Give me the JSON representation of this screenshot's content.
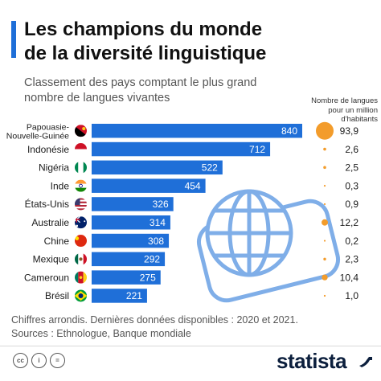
{
  "title_line1": "Les champions du monde",
  "title_line2": "de la diversité linguistique",
  "subtitle_line1": "Classement des pays comptant le plus grand",
  "subtitle_line2": "nombre de langues vivantes",
  "rate_header": [
    "Nombre de langues",
    "pour un million",
    "d'habitants"
  ],
  "footnote_line1": "Chiffres arrondis. Dernières données disponibles : 2020 et 2021.",
  "footnote_line2": "Sources : Ethnologue, Banque mondiale",
  "brand": "statista",
  "license_icons": [
    "cc",
    "i",
    "="
  ],
  "colors": {
    "accent": "#1f6fd8",
    "bar": "#1f6fd8",
    "dot": "#f39c2b",
    "globe": "#4f8fe0"
  },
  "icons": [
    "creative-commons-icon",
    "attribution-icon",
    "no-derivatives-icon",
    "globe-icon",
    "speech-bubble-icon",
    "statista-logo-icon"
  ],
  "chart_data": {
    "type": "bar",
    "orientation": "horizontal",
    "categories": [
      [
        "Papouasie-",
        "Nouvelle-Guinée"
      ],
      [
        "Indonésie"
      ],
      [
        "Nigéria"
      ],
      [
        "Inde"
      ],
      [
        "États-Unis"
      ],
      [
        "Australie"
      ],
      [
        "Chine"
      ],
      [
        "Mexique"
      ],
      [
        "Cameroun"
      ],
      [
        "Brésil"
      ]
    ],
    "flags": [
      "papua-new-guinea",
      "indonesia",
      "nigeria",
      "india",
      "united-states",
      "australia",
      "china",
      "mexico",
      "cameroon",
      "brazil"
    ],
    "series": [
      {
        "values": [
          840,
          712,
          522,
          454,
          326,
          314,
          308,
          292,
          275,
          221
        ],
        "labels": [
          "840",
          "712",
          "522",
          "454",
          "326",
          "314",
          "308",
          "292",
          "275",
          "221"
        ]
      }
    ],
    "per_million": {
      "values": [
        93.9,
        2.6,
        2.5,
        0.3,
        0.9,
        12.2,
        0.2,
        2.3,
        10.4,
        1.0
      ],
      "labels": [
        "93,9",
        "2,6",
        "2,5",
        "0,3",
        "0,9",
        "12,2",
        "0,2",
        "2,3",
        "10,4",
        "1,0"
      ]
    },
    "xlim": [
      0,
      840
    ],
    "grid": false,
    "legend": "none"
  }
}
